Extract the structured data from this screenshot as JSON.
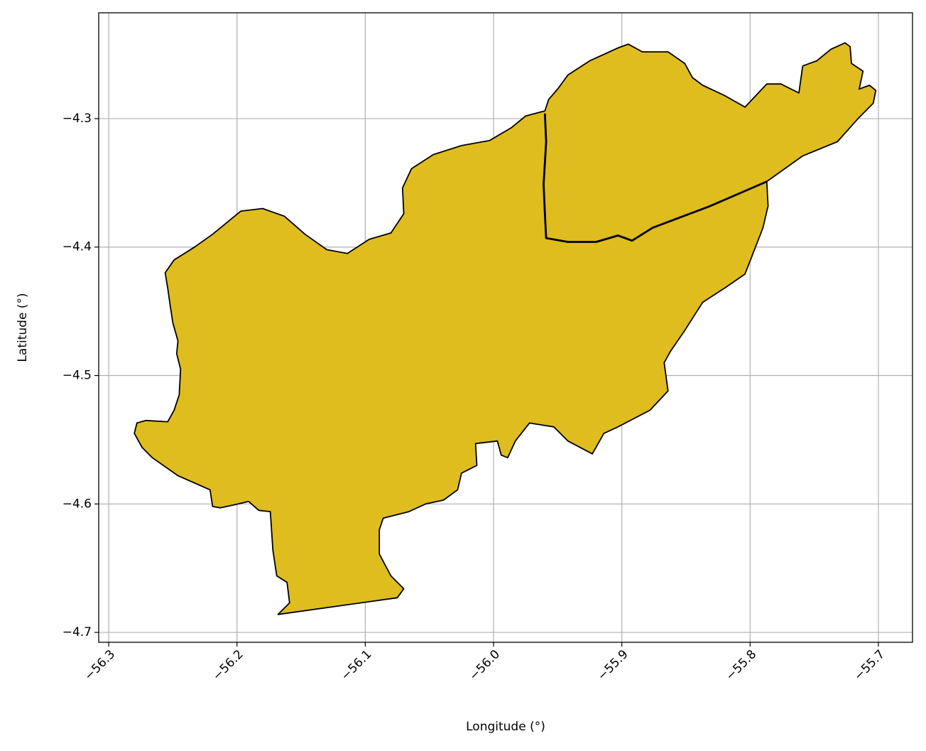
{
  "chart_data": {
    "type": "map",
    "xlabel": "Longitude (°)",
    "ylabel": "Latitude (°)",
    "xlim": [
      -56.3078,
      -55.6734
    ],
    "ylim": [
      -4.7077,
      -4.2176
    ],
    "xticks": [
      {
        "value": -56.3,
        "label": "−56.3"
      },
      {
        "value": -56.2,
        "label": "−56.2"
      },
      {
        "value": -56.1,
        "label": "−56.1"
      },
      {
        "value": -56.0,
        "label": "−56.0"
      },
      {
        "value": -55.9,
        "label": "−55.9"
      },
      {
        "value": -55.8,
        "label": "−55.8"
      },
      {
        "value": -55.7,
        "label": "−55.7"
      }
    ],
    "yticks": [
      {
        "value": -4.7,
        "label": "−4.7"
      },
      {
        "value": -4.6,
        "label": "−4.6"
      },
      {
        "value": -4.5,
        "label": "−4.5"
      },
      {
        "value": -4.4,
        "label": "−4.4"
      },
      {
        "value": -4.3,
        "label": "−4.3"
      }
    ],
    "grid": true,
    "regions": [
      {
        "color": "#dfbd1f",
        "edge_color": "#000000",
        "lon": [
          -56.278,
          -56.271,
          -56.254,
          -56.249,
          -56.245,
          -56.244,
          -56.247,
          -56.246,
          -56.25,
          -56.252,
          -56.254,
          -56.256,
          -56.249,
          -56.233,
          -56.219,
          -56.197,
          -56.18,
          -56.163,
          -56.147,
          -56.13,
          -56.114,
          -56.097,
          -56.08,
          -56.07,
          -56.071,
          -56.064,
          -56.047,
          -56.025,
          -56.003,
          -55.986,
          -55.975,
          -55.96,
          -55.957,
          -55.95,
          -55.942,
          -55.925,
          -55.903,
          -55.895,
          -55.884,
          -55.864,
          -55.851,
          -55.845,
          -55.837,
          -55.82,
          -55.804,
          -55.787,
          -55.776,
          -55.768,
          -55.762,
          -55.759,
          -55.748,
          -55.737,
          -55.726,
          -55.722,
          -55.721,
          -55.712,
          -55.715,
          -55.707,
          -55.702,
          -55.704,
          -55.715,
          -55.732,
          -55.759,
          -55.787,
          -55.786,
          -55.79,
          -55.795,
          -55.804,
          -55.82,
          -55.837,
          -55.851,
          -55.862,
          -55.867,
          -55.864,
          -55.878,
          -55.903,
          -55.914,
          -55.923,
          -55.942,
          -55.953,
          -55.972,
          -55.983,
          -55.989,
          -55.994,
          -55.997,
          -56.014,
          -56.013,
          -56.025,
          -56.028,
          -56.039,
          -56.053,
          -56.066,
          -56.086,
          -56.089,
          -56.089,
          -56.08,
          -56.07,
          -56.075,
          -56.168,
          -56.159,
          -56.161,
          -56.169,
          -56.172,
          -56.174,
          -56.183,
          -56.191,
          -56.199,
          -56.213,
          -56.219,
          -56.221,
          -56.246,
          -56.266,
          -56.274,
          -56.28
        ],
        "lat": [
          -4.537,
          -4.535,
          -4.536,
          -4.527,
          -4.515,
          -4.495,
          -4.483,
          -4.473,
          -4.459,
          -4.446,
          -4.432,
          -4.42,
          -4.41,
          -4.4,
          -4.39,
          -4.372,
          -4.37,
          -4.376,
          -4.39,
          -4.402,
          -4.405,
          -4.394,
          -4.389,
          -4.374,
          -4.354,
          -4.339,
          -4.328,
          -4.321,
          -4.317,
          -4.307,
          -4.298,
          -4.294,
          -4.285,
          -4.277,
          -4.266,
          -4.255,
          -4.245,
          -4.242,
          -4.248,
          -4.248,
          -4.257,
          -4.268,
          -4.274,
          -4.282,
          -4.291,
          -4.273,
          -4.273,
          -4.277,
          -4.28,
          -4.259,
          -4.255,
          -4.246,
          -4.241,
          -4.244,
          -4.257,
          -4.263,
          -4.277,
          -4.274,
          -4.278,
          -4.288,
          -4.299,
          -4.318,
          -4.329,
          -4.349,
          -4.368,
          -4.385,
          -4.398,
          -4.421,
          -4.432,
          -4.443,
          -4.465,
          -4.481,
          -4.49,
          -4.512,
          -4.527,
          -4.54,
          -4.545,
          -4.561,
          -4.551,
          -4.54,
          -4.537,
          -4.551,
          -4.564,
          -4.562,
          -4.551,
          -4.553,
          -4.57,
          -4.576,
          -4.589,
          -4.597,
          -4.6,
          -4.606,
          -4.611,
          -4.62,
          -4.639,
          -4.656,
          -4.666,
          -4.673,
          -4.686,
          -4.677,
          -4.661,
          -4.656,
          -4.636,
          -4.606,
          -4.605,
          -4.598,
          -4.6,
          -4.603,
          -4.602,
          -4.589,
          -4.578,
          -4.564,
          -4.556,
          -4.545
        ]
      }
    ],
    "boundaries": [
      {
        "color": "#000000",
        "lon": [
          -55.96,
          -55.959,
          -55.961,
          -55.96,
          -55.959,
          -55.942,
          -55.92,
          -55.903,
          -55.892,
          -55.876,
          -55.831,
          -55.787
        ],
        "lat": [
          -4.296,
          -4.318,
          -4.351,
          -4.374,
          -4.393,
          -4.396,
          -4.396,
          -4.391,
          -4.395,
          -4.385,
          -4.368,
          -4.349
        ]
      }
    ]
  }
}
